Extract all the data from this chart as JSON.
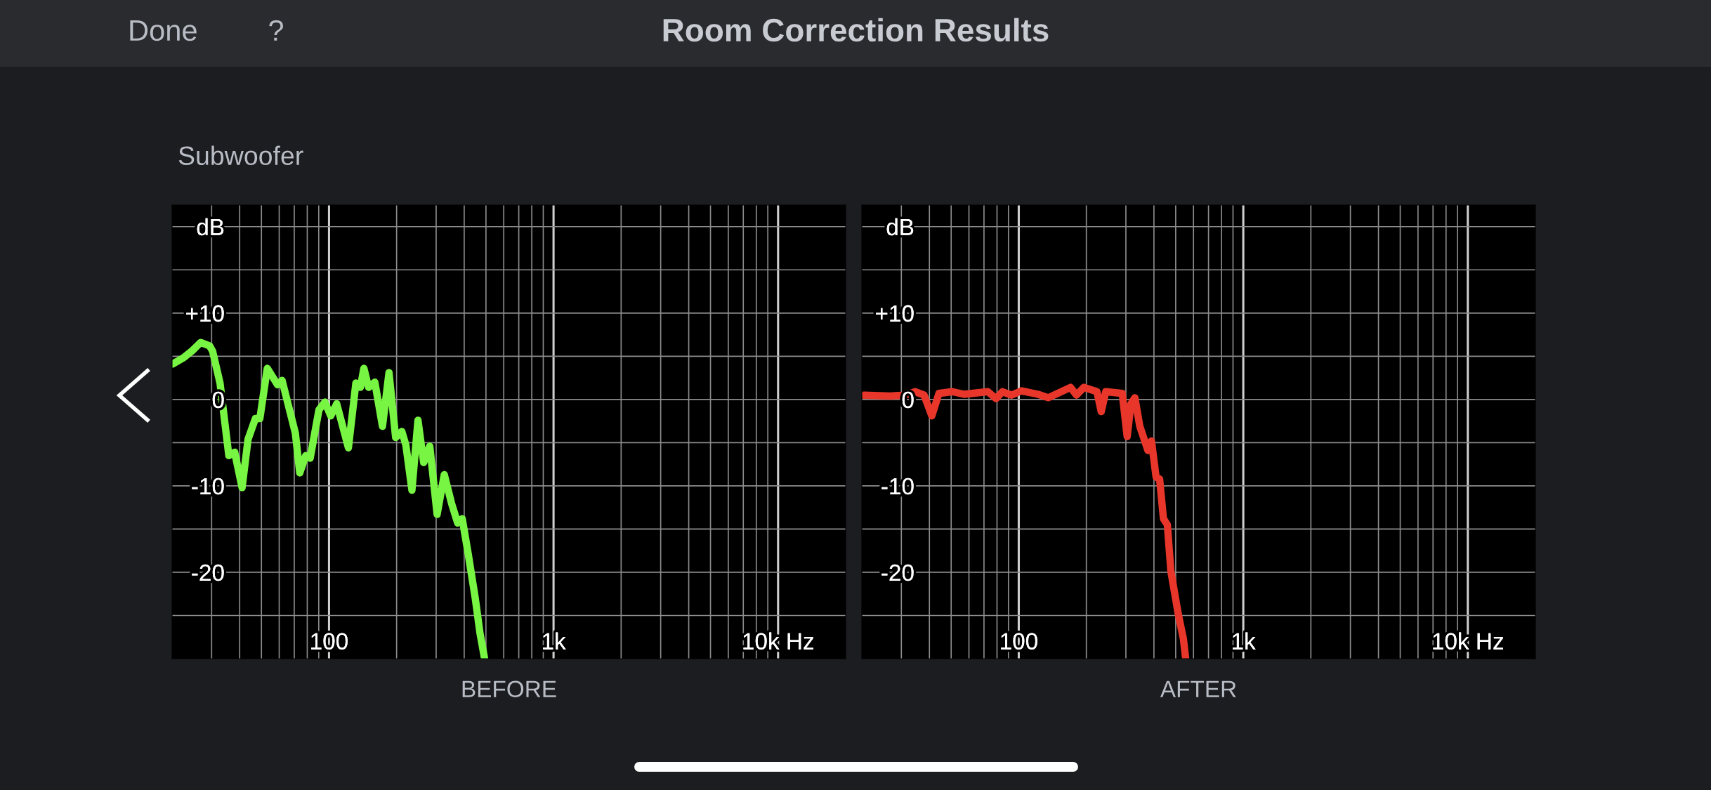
{
  "chart_data": [
    {
      "type": "line",
      "title": "Room Correction Results",
      "subtitle": "Subwoofer",
      "annotations": [
        "Done",
        "?"
      ],
      "xlabel": "BEFORE",
      "log": "x",
      "grid": true,
      "legend": false,
      "marker": "none",
      "line_style": "solid",
      "xlim": [
        20,
        20000
      ],
      "ylim": [
        -30,
        22.5
      ],
      "xticks": [
        {
          "value": 30,
          "label": null
        },
        {
          "value": 40,
          "label": null
        },
        {
          "value": 50,
          "label": null
        },
        {
          "value": 60,
          "label": null
        },
        {
          "value": 70,
          "label": null
        },
        {
          "value": 80,
          "label": null
        },
        {
          "value": 90,
          "label": null
        },
        100,
        {
          "value": 200,
          "label": null
        },
        {
          "value": 300,
          "label": null
        },
        {
          "value": 400,
          "label": null
        },
        {
          "value": 500,
          "label": null
        },
        {
          "value": 600,
          "label": null
        },
        {
          "value": 700,
          "label": null
        },
        {
          "value": 800,
          "label": null
        },
        {
          "value": 900,
          "label": null
        },
        {
          "value": 1000,
          "label": "1k"
        },
        {
          "value": 2000,
          "label": null
        },
        {
          "value": 3000,
          "label": null
        },
        {
          "value": 4000,
          "label": null
        },
        {
          "value": 5000,
          "label": null
        },
        {
          "value": 6000,
          "label": null
        },
        {
          "value": 7000,
          "label": null
        },
        {
          "value": 8000,
          "label": null
        },
        {
          "value": 9000,
          "label": null
        },
        {
          "value": 10000,
          "label": "10k Hz"
        }
      ],
      "yticks": [
        {
          "value": -25,
          "label": null
        },
        -20,
        {
          "value": -15,
          "label": null
        },
        -10,
        {
          "value": -5,
          "label": null
        },
        0,
        {
          "value": 5,
          "label": null
        },
        {
          "value": 10,
          "label": "+10"
        },
        {
          "value": 15,
          "label": null
        },
        {
          "value": 20,
          "label": "dB"
        }
      ],
      "series": [
        {
          "color": "#77f542",
          "x": [
            20.1,
            22.4,
            24.5,
            26.8,
            29.4,
            30.3,
            32.7,
            35.8,
            38.0,
            41.0,
            43.6,
            47.0,
            49.2,
            53.1,
            59.0,
            61.8,
            70.8,
            74.1,
            78.7,
            82.4,
            90.2,
            95.8,
            101.8,
            108.2,
            122,
            131.7,
            137.9,
            143,
            150,
            160,
            173,
            185,
            198,
            211,
            220,
            234,
            249,
            264,
            281,
            303,
            326,
            352,
            374,
            392,
            417,
            448,
            470,
            493
          ],
          "values": [
            4.1,
            4.8,
            5.6,
            6.6,
            6.2,
            5.6,
            1.9,
            -6.5,
            -6.1,
            -10.2,
            -4.6,
            -2.2,
            -2.2,
            3.6,
            1.7,
            2.2,
            -3.9,
            -8.5,
            -6.5,
            -6.8,
            -1.2,
            -0.3,
            -1.9,
            -0.5,
            -5.6,
            1.9,
            1.4,
            3.6,
            1.4,
            2.0,
            -3.1,
            3.1,
            -4.4,
            -3.7,
            -5.3,
            -10.5,
            -2.4,
            -7.3,
            -5.4,
            -13.3,
            -8.7,
            -12.1,
            -14.3,
            -13.8,
            -17.9,
            -23.0,
            -27.0,
            -30
          ]
        }
      ]
    },
    {
      "type": "line",
      "xlabel": "AFTER",
      "log": "x",
      "grid": true,
      "legend": false,
      "marker": "none",
      "line_style": "solid",
      "xlim": [
        20,
        20000
      ],
      "ylim": [
        -30,
        22.5
      ],
      "xticks": [
        {
          "value": 30,
          "label": null
        },
        {
          "value": 40,
          "label": null
        },
        {
          "value": 50,
          "label": null
        },
        {
          "value": 60,
          "label": null
        },
        {
          "value": 70,
          "label": null
        },
        {
          "value": 80,
          "label": null
        },
        {
          "value": 90,
          "label": null
        },
        100,
        {
          "value": 200,
          "label": null
        },
        {
          "value": 300,
          "label": null
        },
        {
          "value": 400,
          "label": null
        },
        {
          "value": 500,
          "label": null
        },
        {
          "value": 600,
          "label": null
        },
        {
          "value": 700,
          "label": null
        },
        {
          "value": 800,
          "label": null
        },
        {
          "value": 900,
          "label": null
        },
        {
          "value": 1000,
          "label": "1k"
        },
        {
          "value": 2000,
          "label": null
        },
        {
          "value": 3000,
          "label": null
        },
        {
          "value": 4000,
          "label": null
        },
        {
          "value": 5000,
          "label": null
        },
        {
          "value": 6000,
          "label": null
        },
        {
          "value": 7000,
          "label": null
        },
        {
          "value": 8000,
          "label": null
        },
        {
          "value": 9000,
          "label": null
        },
        {
          "value": 10000,
          "label": "10k Hz"
        }
      ],
      "yticks": [
        {
          "value": -25,
          "label": null
        },
        -20,
        {
          "value": -15,
          "label": null
        },
        -10,
        {
          "value": -5,
          "label": null
        },
        0,
        {
          "value": 5,
          "label": null
        },
        {
          "value": 10,
          "label": "+10"
        },
        {
          "value": 15,
          "label": null
        },
        {
          "value": 20,
          "label": "dB"
        }
      ],
      "series": [
        {
          "color": "#e8372a",
          "x": [
            20.4,
            26.8,
            31.2,
            34.6,
            37.9,
            41.0,
            44.1,
            50.6,
            57.1,
            72.8,
            79.2,
            84.6,
            92.7,
            103,
            121.8,
            135.4,
            170,
            180.6,
            195,
            223,
            233,
            244,
            289,
            304,
            316,
            329,
            346,
            376,
            390,
            409,
            424,
            441,
            459,
            476,
            513,
            541,
            554
          ],
          "values": [
            0.5,
            0.4,
            0.5,
            0.9,
            0.5,
            -1.9,
            0.7,
            0.9,
            0.6,
            0.9,
            0.1,
            0.9,
            0.5,
            1.0,
            0.6,
            0.2,
            1.4,
            0.5,
            1.4,
            0.9,
            -1.4,
            0.9,
            0.7,
            -4.3,
            -0.5,
            0.2,
            -3.1,
            -5.9,
            -4.8,
            -9.0,
            -9.2,
            -13.8,
            -14.5,
            -19.9,
            -24.8,
            -27.7,
            -30
          ]
        }
      ]
    }
  ]
}
